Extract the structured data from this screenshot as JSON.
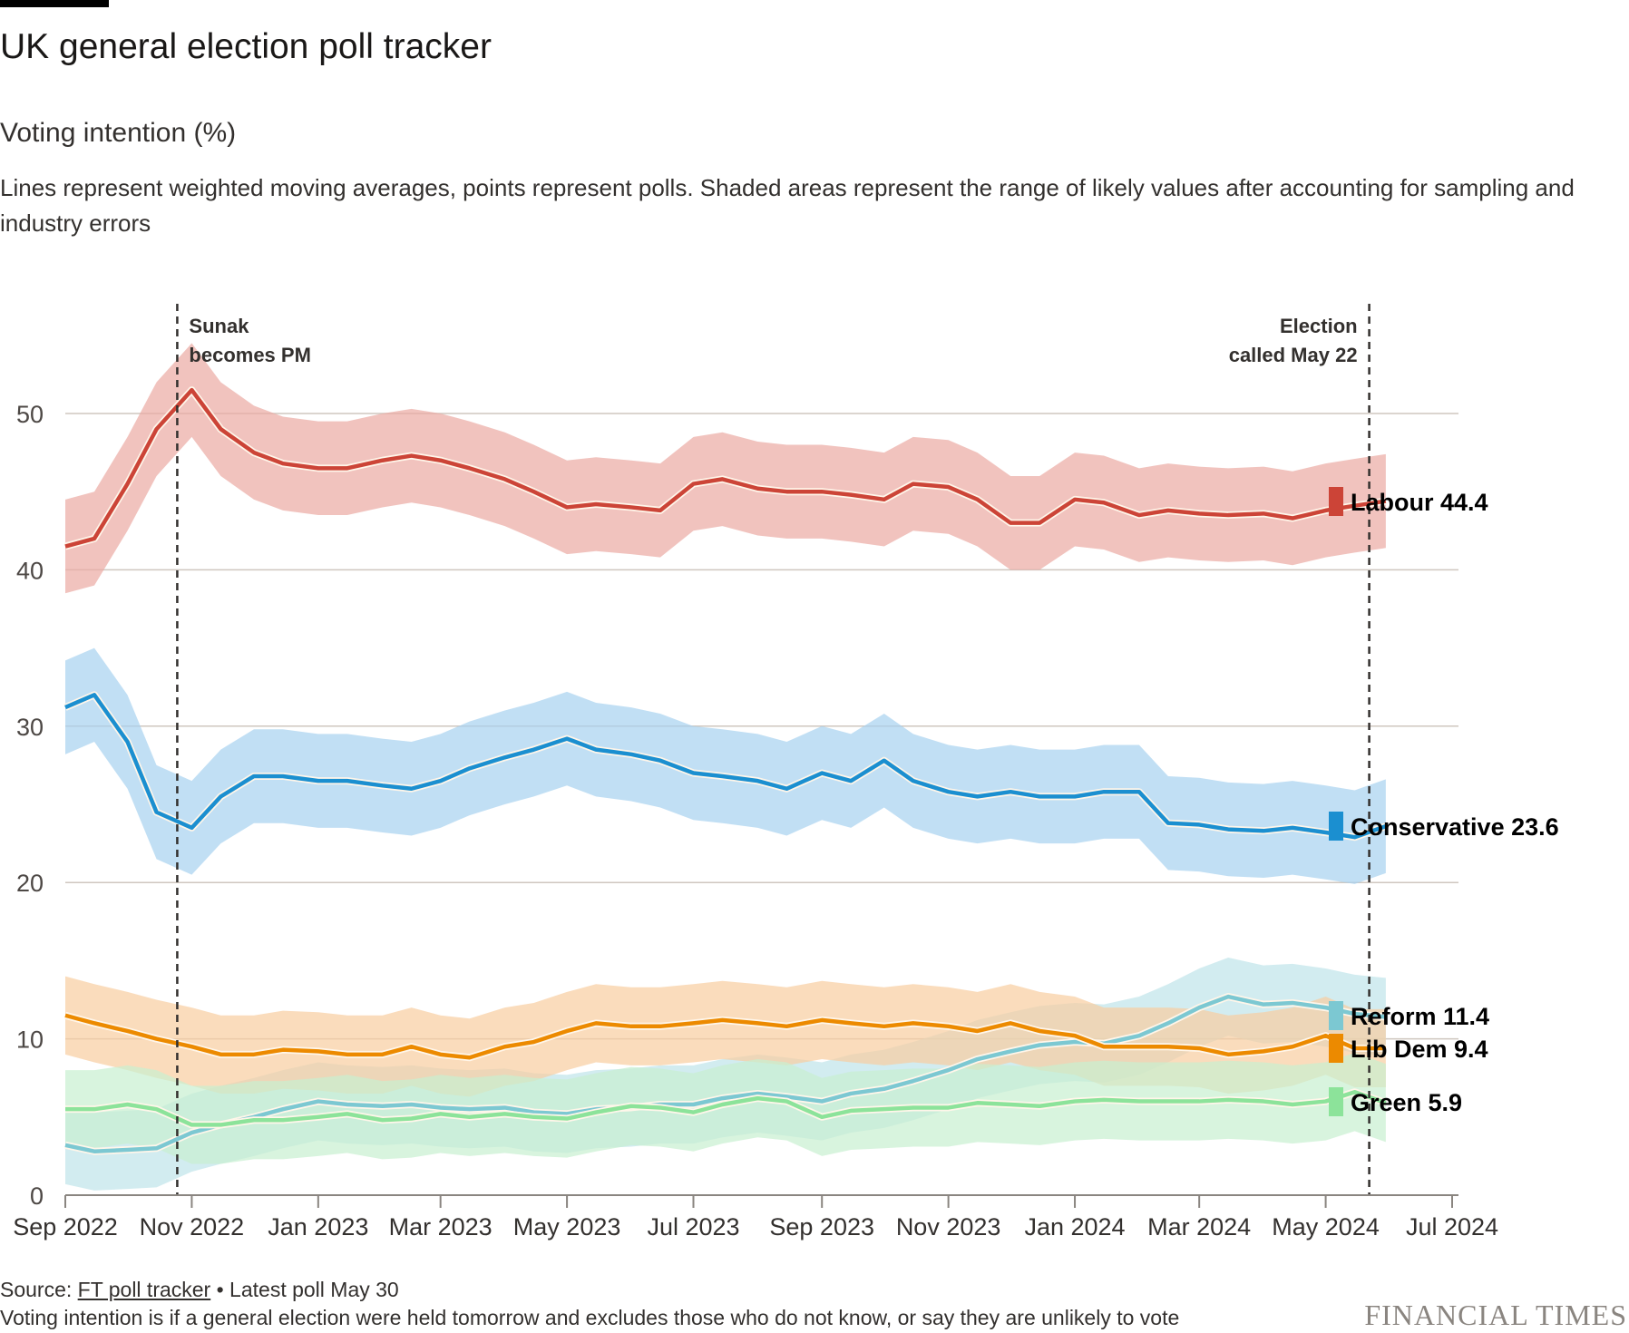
{
  "header": {
    "title": "UK general election poll tracker",
    "subtitle": "Voting intention (%)",
    "description": "Lines represent weighted moving averages, points represent polls. Shaded areas represent the range of likely values after accounting for sampling and industry errors"
  },
  "footer": {
    "source_prefix": "Source: ",
    "source_link": "FT poll tracker",
    "latest": " • Latest poll May 30",
    "note": "Voting intention is if a general election were held tomorrow and excludes those who do not know, or say they are unlikely to vote",
    "brand": "FINANCIAL TIMES"
  },
  "chart_data": {
    "type": "line",
    "title": "UK general election poll tracker",
    "ylabel": "Voting intention (%)",
    "xlabel": "",
    "ylim": [
      0,
      57
    ],
    "xlim": [
      "2022-09-01",
      "2024-07-01"
    ],
    "grid": true,
    "y_ticks": [
      0,
      10,
      20,
      30,
      40,
      50
    ],
    "x_ticks": [
      {
        "date": "2022-09-01",
        "label": "Sep 2022"
      },
      {
        "date": "2022-11-01",
        "label": "Nov 2022"
      },
      {
        "date": "2023-01-01",
        "label": "Jan 2023"
      },
      {
        "date": "2023-03-01",
        "label": "Mar 2023"
      },
      {
        "date": "2023-05-01",
        "label": "May 2023"
      },
      {
        "date": "2023-07-01",
        "label": "Jul 2023"
      },
      {
        "date": "2023-09-01",
        "label": "Sep 2023"
      },
      {
        "date": "2023-11-01",
        "label": "Nov 2023"
      },
      {
        "date": "2024-01-01",
        "label": "Jan 2024"
      },
      {
        "date": "2024-03-01",
        "label": "Mar 2024"
      },
      {
        "date": "2024-05-01",
        "label": "May 2024"
      },
      {
        "date": "2024-07-01",
        "label": "Jul 2024"
      }
    ],
    "annotations": [
      {
        "date": "2022-10-25",
        "lines": [
          "Sunak",
          "becomes PM"
        ],
        "align": "right-of-line"
      },
      {
        "date": "2024-05-22",
        "lines": [
          "Election",
          "called May 22"
        ],
        "align": "left-of-line"
      }
    ],
    "legend_placement": "right-end-labels",
    "x": [
      "2022-09-01",
      "2022-09-15",
      "2022-10-01",
      "2022-10-15",
      "2022-11-01",
      "2022-11-15",
      "2022-12-01",
      "2022-12-15",
      "2023-01-01",
      "2023-01-15",
      "2023-02-01",
      "2023-02-15",
      "2023-03-01",
      "2023-03-15",
      "2023-04-01",
      "2023-04-15",
      "2023-05-01",
      "2023-05-15",
      "2023-06-01",
      "2023-06-15",
      "2023-07-01",
      "2023-07-15",
      "2023-08-01",
      "2023-08-15",
      "2023-09-01",
      "2023-09-15",
      "2023-10-01",
      "2023-10-15",
      "2023-11-01",
      "2023-11-15",
      "2023-12-01",
      "2023-12-15",
      "2024-01-01",
      "2024-01-15",
      "2024-02-01",
      "2024-02-15",
      "2024-03-01",
      "2024-03-15",
      "2024-04-01",
      "2024-04-15",
      "2024-05-01",
      "2024-05-15",
      "2024-05-30"
    ],
    "series": [
      {
        "name": "Labour",
        "latest": "44.4",
        "color": "#cc4437",
        "band": "#eba9a3",
        "uncertainty_pp": 3,
        "values": [
          41.5,
          42,
          45.5,
          49,
          51.5,
          49,
          47.5,
          46.8,
          46.5,
          46.5,
          47,
          47.3,
          47,
          46.5,
          45.8,
          45,
          44,
          44.2,
          44,
          43.8,
          45.5,
          45.8,
          45.2,
          45,
          45,
          44.8,
          44.5,
          45.5,
          45.3,
          44.5,
          43,
          43,
          44.5,
          44.3,
          43.5,
          43.8,
          43.6,
          43.5,
          43.6,
          43.3,
          43.8,
          44.1,
          44.4
        ]
      },
      {
        "name": "Conservative",
        "latest": "23.6",
        "color": "#1b8fd0",
        "band": "#a6d2f0",
        "uncertainty_pp": 3,
        "values": [
          31.2,
          32,
          29,
          24.5,
          23.5,
          25.5,
          26.8,
          26.8,
          26.5,
          26.5,
          26.2,
          26,
          26.5,
          27.3,
          28,
          28.5,
          29.2,
          28.5,
          28.2,
          27.8,
          27,
          26.8,
          26.5,
          26,
          27,
          26.5,
          27.8,
          26.5,
          25.8,
          25.5,
          25.8,
          25.5,
          25.5,
          25.8,
          25.8,
          23.8,
          23.7,
          23.4,
          23.3,
          23.5,
          23.2,
          22.9,
          23.6
        ]
      },
      {
        "name": "Reform",
        "latest": "11.4",
        "color": "#7cc8d2",
        "band": "#bfe4ea",
        "uncertainty_pp": 2.5,
        "values": [
          3.2,
          2.8,
          2.9,
          3,
          4,
          4.5,
          5,
          5.5,
          6,
          5.8,
          5.7,
          5.8,
          5.6,
          5.5,
          5.6,
          5.3,
          5.2,
          5.5,
          5.6,
          5.8,
          5.8,
          6.2,
          6.5,
          6.3,
          6,
          6.5,
          6.8,
          7.3,
          8,
          8.7,
          9.2,
          9.6,
          9.8,
          9.7,
          10.2,
          11,
          12,
          12.7,
          12.2,
          12.3,
          12,
          11.6,
          11.4
        ]
      },
      {
        "name": "Lib Dem",
        "latest": "9.4",
        "color": "#ec8a00",
        "band": "#f8cda0",
        "uncertainty_pp": 2.5,
        "values": [
          11.5,
          11,
          10.5,
          10,
          9.5,
          9,
          9,
          9.3,
          9.2,
          9,
          9,
          9.5,
          9,
          8.8,
          9.5,
          9.8,
          10.5,
          11,
          10.8,
          10.8,
          11,
          11.2,
          11,
          10.8,
          11.2,
          11,
          10.8,
          11,
          10.8,
          10.5,
          11,
          10.5,
          10.2,
          9.5,
          9.5,
          9.5,
          9.4,
          9,
          9.2,
          9.5,
          10.2,
          9.4,
          9.4
        ]
      },
      {
        "name": "Green",
        "latest": "5.9",
        "color": "#8ce39a",
        "band": "#c7f0d0",
        "uncertainty_pp": 2.5,
        "values": [
          5.5,
          5.5,
          5.8,
          5.5,
          4.5,
          4.5,
          4.8,
          4.8,
          5,
          5.2,
          4.8,
          4.9,
          5.2,
          5,
          5.2,
          5,
          4.9,
          5.3,
          5.7,
          5.6,
          5.3,
          5.8,
          6.2,
          6,
          5,
          5.4,
          5.5,
          5.6,
          5.6,
          5.9,
          5.8,
          5.7,
          6,
          6.1,
          6,
          6,
          6,
          6.1,
          6,
          5.8,
          6,
          6.6,
          5.9
        ]
      }
    ],
    "end_label_positions_pct": [
      44.4,
      23.6,
      11.4,
      9.4,
      5.9
    ]
  }
}
